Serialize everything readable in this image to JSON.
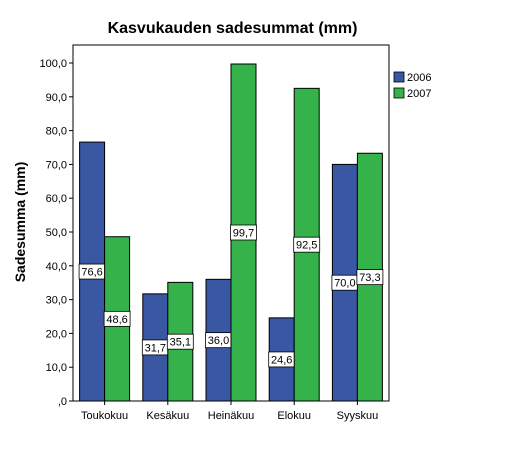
{
  "chart_data": {
    "type": "bar",
    "title": "Kasvukauden sadesummat (mm)",
    "xlabel": "",
    "ylabel": "Sadesumma (mm)",
    "categories": [
      "Toukokuu",
      "Kesäkuu",
      "Heinäkuu",
      "Elokuu",
      "Syyskuu"
    ],
    "series": [
      {
        "name": "2006",
        "color": "#3a57a4",
        "values": [
          76.6,
          31.7,
          36.0,
          24.6,
          70.0
        ],
        "labels": [
          "76,6",
          "31,7",
          "36,0",
          "24,6",
          "70,0"
        ]
      },
      {
        "name": "2007",
        "color": "#35b34a",
        "values": [
          48.6,
          35.1,
          99.7,
          92.5,
          73.3
        ],
        "labels": [
          "48,6",
          "35,1",
          "99,7",
          "92,5",
          "73,3"
        ]
      }
    ],
    "ylim": [
      0,
      100
    ],
    "yticks": [
      ",0",
      "10,0",
      "20,0",
      "30,0",
      "40,0",
      "50,0",
      "60,0",
      "70,0",
      "80,0",
      "90,0",
      "100,0"
    ],
    "grid": false,
    "legend": "right"
  }
}
